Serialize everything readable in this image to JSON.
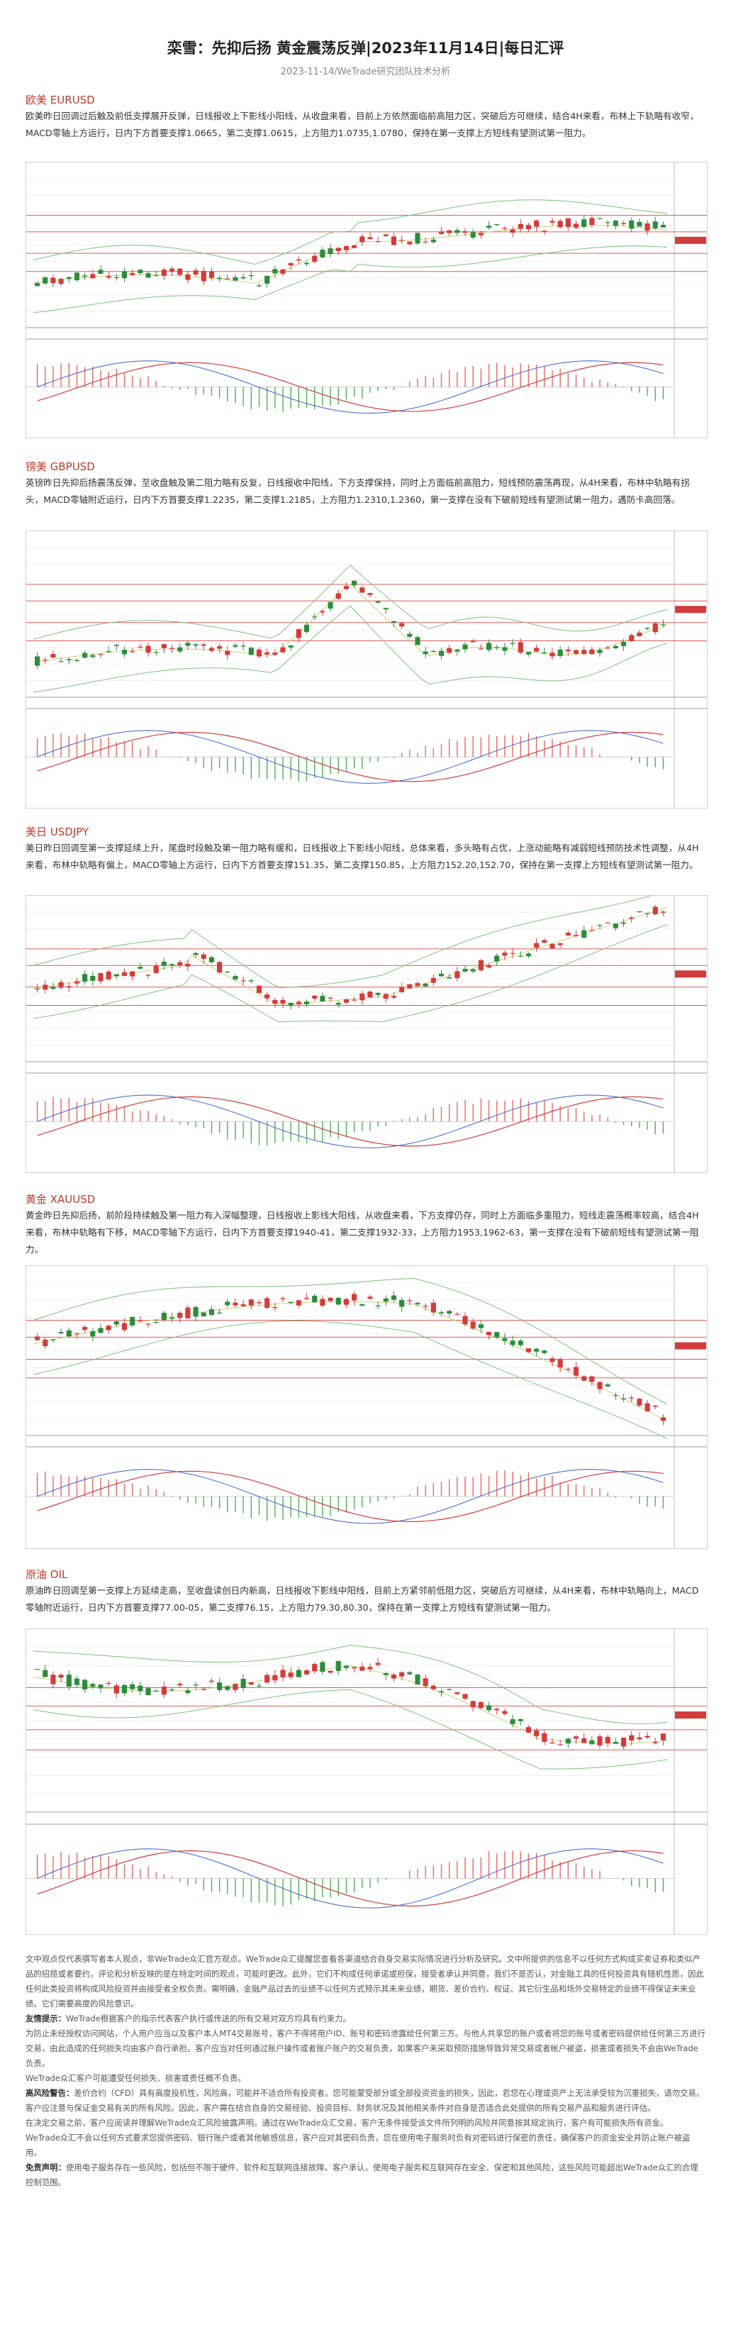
{
  "header": {
    "title": "栾雪：先抑后扬 黄金震荡反弹|2023年11月14日|每日汇评",
    "subtitle": "2023-11-14/WeTrade研究团队技术分析"
  },
  "sections": [
    {
      "heading": "欧美 EURUSD",
      "text": "欧美昨日回调过后触及前低支撑展开反弹，日线报收上下影线小阳线，从收盘来看，目前上方依然面临前高阻力区，突破后方可继续，结合4H来看，布林上下轨略有收窄，MACD零轴上方运行，日内下方首要支撑1.0665，第二支撑1.0615，上方阻力1.0735,1.0780，保持在第一支撑上方短线有望测试第一阻力。"
    },
    {
      "heading": "镑美 GBPUSD",
      "text": "英镑昨日先抑后扬震荡反弹，至收盘触及第二阻力略有反复，日线报收中阳线，下方支撑保持，同时上方面临前高阻力，短线预防震荡再现，从4H来看，布林中轨略有拐头，MACD零轴附近运行，日内下方首要支撑1.2235，第二支撑1.2185，上方阻力1.2310,1.2360，第一支撑在没有下破前短线有望测试第一阻力，遇防卡高回落。"
    },
    {
      "heading": "美日 USDJPY",
      "text": "美日昨日回调至第一支撑延续上升，尾盘时段触及第一阻力略有缓和，日线报收上下影线小阳线，总体来看，多头略有占优，上涨动能略有减弱短线预防技术性调整，从4H来看，布林中轨略有偏上，MACD零轴上方运行，日内下方首要支撑151.35，第二支撑150.85，上方阻力152.20,152.70，保持在第一支撑上方短线有望测试第一阻力。"
    },
    {
      "heading": "黄金 XAUUSD",
      "text": "黄金昨日先抑后扬，前阶段持续触及第一阻力有入深幅整理，日线报收上影线大阳线，从收盘来看，下方支撑仍存，同时上方面临多重阻力，短线走震荡概率较高，结合4H来看，布林中轨略有下移，MACD零轴下方运行，日内下方首要支撑1940-41，第二支撑1932-33，上方阻力1953,1962-63，第一支撑在没有下破前短线有望测试第一阻力。"
    },
    {
      "heading": "原油 OIL",
      "text": "原油昨日回调至第一支撑上方延续走高，至收盘读创日内新高，日线报收下影线中阳线，目前上方紧邻前低阻力区，突破后方可继续，从4H来看，布林中轨略向上，MACD零轴附近运行，日内下方首要支撑77.00-05，第二支撑76.15，上方阻力79.30,80.30，保持在第一支撑上方短线有望测试第一阻力。"
    }
  ],
  "footer": {
    "p1": "文中观点仅代表撰写者本人观点，非WeTrade众汇官方观点。WeTrade众汇提醒您查看各渠道结合自身交易实际情况进行分析及研究。文中所提供的信息不以任何方式构成买卖证券和类似产品的招揽或者要约，评论和分析反映的是在特定时间的观点，可能时更改。此外，它们不构成任何承诺或担保，接受者承认并同意，我们不是否认，对金融工具的任何投资具有随机性质，因此任何此类投资将构成风险投资并由接受者全权负责。需明确，金融产品过去的业绩不以任何方式预示其未来业绩，期货、差价合约、权证、其它衍生品和场外交易特定的业绩不得保证未来业绩。它们需要高度的风险意识。",
    "p2_label": "友情提示：",
    "p2": "WeTrade根据客户的指示代表客户执行或传送的所有交易对双方均具有约束力。",
    "p3": "为防止未经授权访问网站，个人用户应当以及客户本人MT4交易账号，客户不得将用户ID、账号和密码泄露给任何第三方。与他人共享您的账户或者将您的账号或者密码提供给任何第三方进行交易，由此造成的任何损失均由客户自行承担。客户应当对任何通过账户操作或者账户账户的交易负责，如果客户未采取预防措施导致异常交易或者帐户被盗，损害或者损失不会由WeTrade负责。",
    "p4": "WeTrade众汇客户可能遭受任何损失、损害或责任概不负责。",
    "p5_label": "高风险警告：",
    "p5": "差价合约（CFD）具有高度投机性，风险高，可能并不适合所有投资者。您可能蒙受部分或全部投资资金的损失，因此，若您在心理或资产上无法承受较为沉重损失，请勿交易。",
    "p6": "客户应注意与保证金交易有关的所有风险。因此，客户需在结合自身的交易经验、投资目标、财务状况及其他相关条件对自身是否适合此处提供的所有交易产品和服务进行评估。",
    "p7": "在决定交易之前，客户应阅读并理解WeTrade众汇风险披露声明。通过在WeTrade众汇交易，客户无条件接受该文件所列明的风险并同意按其规定执行，客户有可能损失所有资金。",
    "p8": "WeTrade众汇不会以任何方式要求您提供密码、银行账户或者其他敏感信息，客户应对其密码负责，您在使用电子服务时负有对密码进行保密的责任，确保客户的资金安全并防止账户被盗用。",
    "p9_label": "免责声明：",
    "p9": "使用电子服务存在一些风险，包括但不限于硬件、软件和互联网连接故障。客户承认，使用电子服务和互联网存在安全、保密和其他风险，这些风险可能超出WeTrade众汇的合理控制范围。"
  }
}
